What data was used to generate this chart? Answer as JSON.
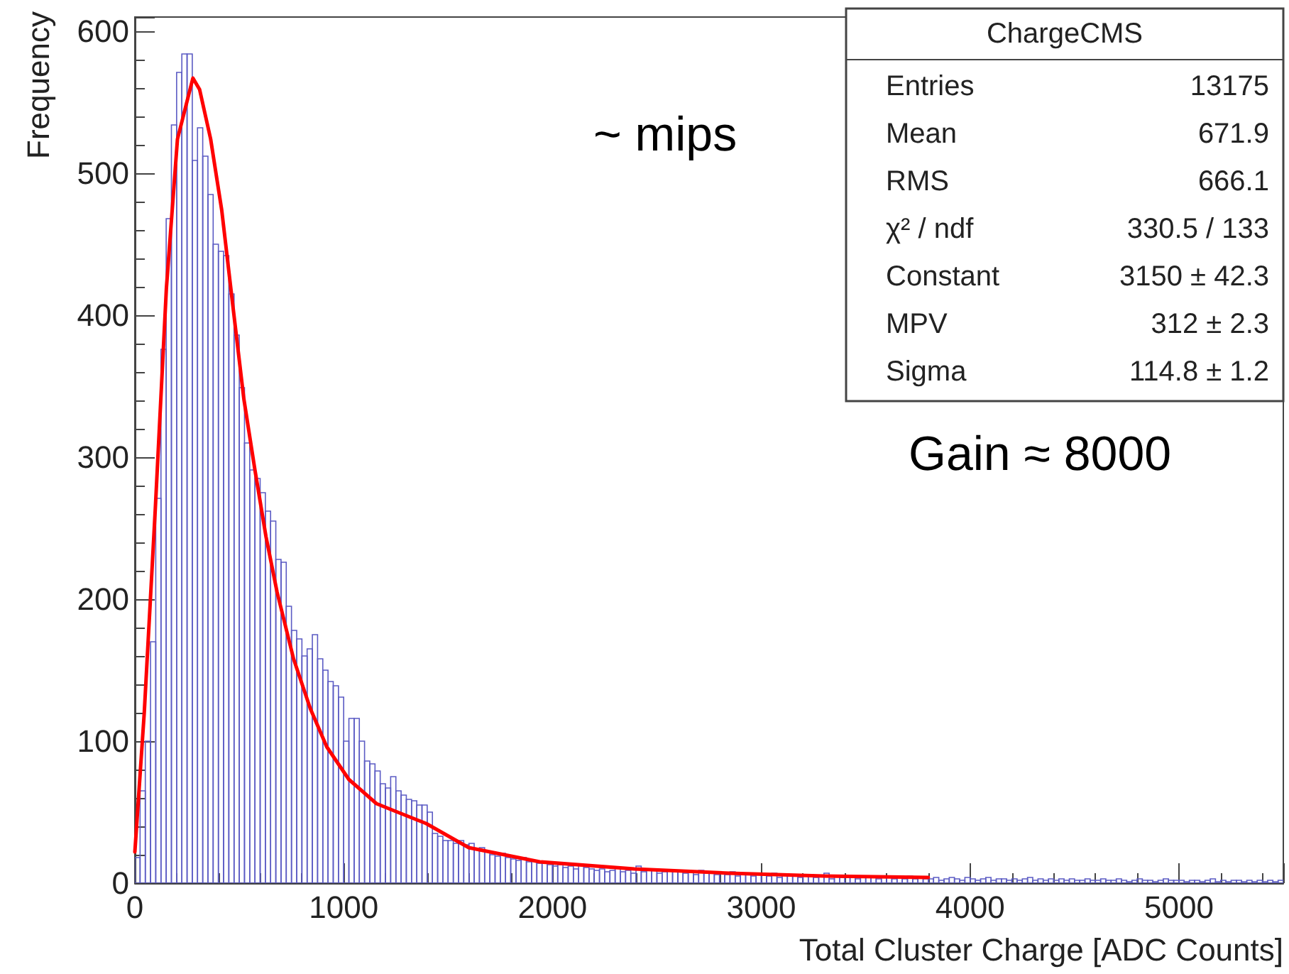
{
  "chart_data": {
    "type": "histogram",
    "xlabel": "Total Cluster Charge [ADC Counts]",
    "ylabel": "Frequency",
    "xlim": [
      0,
      5500
    ],
    "xticks": [
      0,
      1000,
      2000,
      3000,
      4000,
      5000
    ],
    "ylim": [
      0,
      610
    ],
    "yticks": [
      0,
      100,
      200,
      300,
      400,
      500,
      600
    ],
    "grid": false,
    "series": [
      {
        "color": "#5b5bc4",
        "bins": [
          0,
          25,
          50,
          75,
          100,
          125,
          150,
          175,
          200,
          225,
          250,
          275,
          300,
          325,
          350,
          375,
          400,
          425,
          450,
          475,
          500,
          525,
          550,
          575,
          600,
          625,
          650,
          675,
          700,
          725,
          750,
          775,
          800,
          825,
          850,
          875,
          900,
          925,
          950,
          975,
          1000,
          1025,
          1050,
          1075,
          1100,
          1125,
          1150,
          1175,
          1200,
          1225,
          1250,
          1275,
          1300,
          1325,
          1350,
          1375,
          1400,
          1425,
          1450,
          1475,
          1500,
          1525,
          1550,
          1575,
          1600,
          1625,
          1650,
          1675,
          1700,
          1725,
          1750,
          1775,
          1800,
          1825,
          1850,
          1875,
          1900,
          1925,
          1950,
          1975,
          2000,
          2025,
          2050,
          2075,
          2100,
          2125,
          2150,
          2175,
          2200,
          2225,
          2250,
          2275,
          2300,
          2325,
          2350,
          2375,
          2400,
          2425,
          2450,
          2475,
          2500,
          2525,
          2550,
          2575,
          2600,
          2625,
          2650,
          2675,
          2700,
          2725,
          2750,
          2775,
          2800,
          2825,
          2850,
          2875,
          2900,
          2925,
          2950,
          2975,
          3000,
          3025,
          3050,
          3075,
          3100,
          3125,
          3150,
          3175,
          3200,
          3225,
          3250,
          3275,
          3300,
          3325,
          3350,
          3375,
          3400,
          3425,
          3450,
          3475,
          3500,
          3525,
          3550,
          3575,
          3600,
          3625,
          3650,
          3675,
          3700,
          3725,
          3750,
          3775,
          3800,
          3825,
          3850,
          3875,
          3900,
          3925,
          3950,
          3975,
          4000,
          4025,
          4050,
          4075,
          4100,
          4125,
          4150,
          4175,
          4200,
          4225,
          4250,
          4275,
          4300,
          4325,
          4350,
          4375,
          4400,
          4425,
          4450,
          4475,
          4500,
          4525,
          4550,
          4575,
          4600,
          4625,
          4650,
          4675,
          4700,
          4725,
          4750,
          4775,
          4800,
          4825,
          4850,
          4875,
          4900,
          4925,
          4950,
          4975,
          5000,
          5025,
          5050,
          5075,
          5100,
          5125,
          5150,
          5175,
          5200,
          5225,
          5250,
          5275,
          5300,
          5325,
          5350,
          5375,
          5400,
          5425,
          5450,
          5475,
          5500
        ],
        "values": [
          18,
          65,
          100,
          170,
          271,
          376,
          468,
          534,
          571,
          584,
          584,
          509,
          532,
          512,
          485,
          450,
          445,
          442,
          415,
          386,
          349,
          310,
          291,
          285,
          275,
          262,
          255,
          228,
          226,
          195,
          178,
          172,
          160,
          165,
          175,
          158,
          150,
          142,
          139,
          131,
          100,
          116,
          116,
          100,
          86,
          84,
          79,
          70,
          67,
          75,
          65,
          62,
          59,
          58,
          55,
          55,
          50,
          35,
          33,
          30,
          30,
          28,
          30,
          27,
          28,
          24,
          25,
          22,
          20,
          19,
          21,
          18,
          17,
          16,
          18,
          15,
          16,
          14,
          15,
          13,
          12,
          13,
          11,
          12,
          10,
          13,
          11,
          10,
          9,
          10,
          8,
          9,
          11,
          8,
          9,
          7,
          12,
          8,
          9,
          10,
          7,
          8,
          9,
          8,
          9,
          7,
          8,
          6,
          9,
          7,
          8,
          6,
          7,
          6,
          8,
          5,
          7,
          6,
          5,
          7,
          6,
          5,
          7,
          4,
          6,
          5,
          6,
          4,
          5,
          6,
          4,
          5,
          7,
          3,
          5,
          4,
          4,
          5,
          3,
          5,
          4,
          4,
          3,
          5,
          4,
          3,
          4,
          3,
          5,
          3,
          4,
          3,
          3,
          4,
          2,
          3,
          4,
          3,
          2,
          4,
          3,
          2,
          3,
          4,
          2,
          3,
          3,
          2,
          3,
          2,
          3,
          4,
          2,
          3,
          2,
          3,
          2,
          3,
          2,
          3,
          2,
          2,
          3,
          2,
          2,
          3,
          2,
          2,
          3,
          2,
          1,
          2,
          3,
          2,
          2,
          1,
          2,
          3,
          2,
          2,
          2,
          1,
          2,
          2,
          1,
          2,
          3,
          1,
          2,
          1,
          2,
          2,
          1,
          2,
          1,
          2,
          1,
          2,
          1,
          2
        ]
      },
      {
        "type": "line",
        "color": "#ff0000",
        "marker": "none",
        "line_style": "solid",
        "x": [
          0,
          45,
          98,
          151,
          204,
          278,
          310,
          363,
          416,
          469,
          522,
          575,
          628,
          681,
          760,
          840,
          919,
          1025,
          1157,
          1258,
          1395,
          1599,
          1939,
          2392,
          2846,
          3300,
          3800
        ],
        "values": [
          22,
          120,
          264,
          419,
          524,
          567,
          559,
          524,
          474,
          407,
          341,
          291,
          244,
          205,
          158,
          123,
          96,
          73,
          56,
          50,
          42,
          25,
          15,
          10,
          7,
          5,
          4
        ]
      }
    ],
    "annotations": [
      "~ mips",
      "Gain ≈ 8000",
      "ChargeCMS",
      "Entries",
      "13175",
      "Mean",
      "671.9",
      "RMS",
      "666.1",
      "χ² / ndf",
      "330.5 / 133",
      "Constant",
      "3150 ± 42.3",
      "MPV",
      "312 ± 2.3",
      "Sigma",
      "114.8 ± 1.2"
    ]
  }
}
